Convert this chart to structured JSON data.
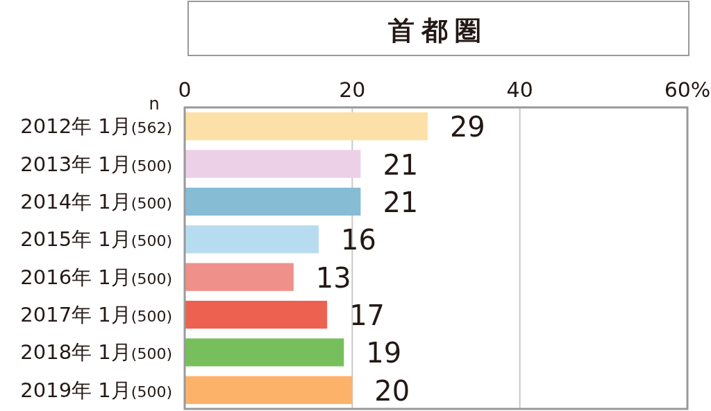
{
  "chart_data": {
    "type": "bar",
    "orientation": "horizontal",
    "title": "首都圏",
    "categories": [
      "2012年 1月(562)",
      "2013年 1月(500)",
      "2014年 1月(500)",
      "2015年 1月(500)",
      "2016年 1月(500)",
      "2017年 1月(500)",
      "2018年 1月(500)",
      "2019年 1月(500)"
    ],
    "values": [
      29,
      21,
      21,
      16,
      13,
      17,
      19,
      20
    ],
    "colors": [
      "#fde0a8",
      "#ecd0e8",
      "#86bcd4",
      "#b8dcef",
      "#ef908a",
      "#ed6150",
      "#77bf5d",
      "#fdb26a"
    ],
    "xlim": [
      0,
      60
    ],
    "xticks": [
      0,
      20,
      40,
      {
        "value": 60,
        "label": "60%"
      }
    ],
    "grid": "x",
    "data_labels": true,
    "annotations": [
      "n"
    ]
  }
}
